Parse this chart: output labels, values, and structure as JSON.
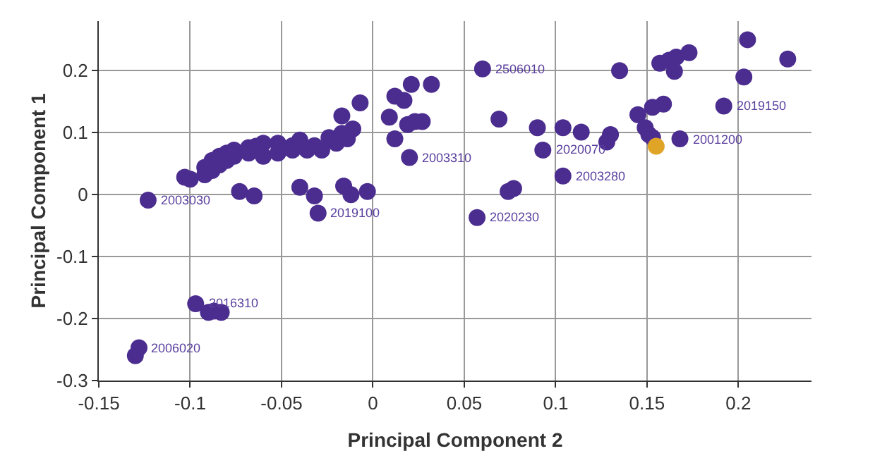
{
  "chart_data": {
    "type": "scatter",
    "xlabel": "Principal Component 2",
    "ylabel": "Principal Component 1",
    "xlim": [
      -0.15,
      0.24
    ],
    "xticks": [
      -0.15,
      -0.1,
      -0.05,
      0,
      0.05,
      0.1,
      0.15,
      0.2
    ],
    "ylim": [
      -0.3,
      0.28
    ],
    "yticks": [
      -0.3,
      -0.2,
      -0.1,
      0,
      0.1,
      0.2
    ],
    "grid": true,
    "marker": "circle",
    "series": [
      {
        "color": "#4b2c8f",
        "x": [
          -0.123,
          -0.103,
          -0.1,
          -0.092,
          -0.088,
          -0.084,
          -0.08,
          -0.076,
          -0.068,
          -0.064,
          -0.06,
          -0.052,
          -0.044,
          -0.04,
          -0.032,
          -0.024,
          -0.017,
          -0.011,
          -0.092,
          -0.088,
          -0.084,
          -0.08,
          -0.076,
          -0.068,
          -0.06,
          -0.052,
          -0.044,
          -0.036,
          -0.028,
          -0.02,
          -0.014,
          -0.073,
          -0.065,
          -0.04,
          -0.032,
          -0.03,
          -0.016,
          -0.012,
          -0.003,
          -0.007,
          -0.017,
          0.012,
          0.017,
          0.021,
          0.032,
          0.023,
          0.027,
          0.019,
          0.009,
          0.012,
          0.02,
          0.06,
          0.069,
          0.09,
          0.104,
          0.114,
          0.093,
          0.104,
          0.074,
          0.077,
          0.057,
          0.135,
          0.149,
          0.151,
          0.153,
          0.157,
          0.162,
          0.166,
          0.173,
          0.165,
          0.203,
          0.205,
          0.227,
          0.145,
          0.153,
          0.159,
          0.192,
          0.168,
          0.13,
          0.128,
          -0.097,
          -0.09,
          -0.087,
          -0.083,
          -0.128,
          -0.13
        ],
        "values": [
          -0.009,
          0.028,
          0.025,
          0.044,
          0.055,
          0.062,
          0.067,
          0.072,
          0.076,
          0.078,
          0.083,
          0.083,
          0.079,
          0.088,
          0.079,
          0.092,
          0.099,
          0.106,
          0.032,
          0.039,
          0.048,
          0.055,
          0.062,
          0.067,
          0.062,
          0.067,
          0.072,
          0.072,
          0.072,
          0.083,
          0.09,
          0.005,
          -0.002,
          0.012,
          -0.002,
          -0.03,
          0.014,
          0.0,
          0.005,
          0.148,
          0.127,
          0.159,
          0.152,
          0.178,
          0.178,
          0.118,
          0.118,
          0.113,
          0.125,
          0.09,
          0.06,
          0.203,
          0.122,
          0.108,
          0.108,
          0.101,
          0.072,
          0.03,
          0.005,
          0.01,
          -0.037,
          0.2,
          0.108,
          0.097,
          0.092,
          0.212,
          0.217,
          0.222,
          0.229,
          0.199,
          0.19,
          0.25,
          0.219,
          0.129,
          0.141,
          0.146,
          0.143,
          0.09,
          0.097,
          0.085,
          -0.176,
          -0.19,
          -0.188,
          -0.19,
          -0.247,
          -0.26
        ]
      },
      {
        "color": "#e0a526",
        "x": [
          0.155
        ],
        "values": [
          0.078
        ]
      }
    ],
    "annotations": [
      {
        "text": "2506010",
        "x": 0.06,
        "y": 0.203
      },
      {
        "text": "2020070",
        "x": 0.093,
        "y": 0.072
      },
      {
        "text": "2003280",
        "x": 0.104,
        "y": 0.03
      },
      {
        "text": "2020230",
        "x": 0.057,
        "y": -0.037
      },
      {
        "text": "2003030",
        "x": -0.123,
        "y": -0.009
      },
      {
        "text": "2019100",
        "x": -0.03,
        "y": -0.03
      },
      {
        "text": "2003310",
        "x": 0.02,
        "y": 0.06
      },
      {
        "text": "2016310",
        "x": -0.097,
        "y": -0.176
      },
      {
        "text": "2006020",
        "x": -0.128,
        "y": -0.247
      },
      {
        "text": "2019150",
        "x": 0.192,
        "y": 0.143
      },
      {
        "text": "2001200",
        "x": 0.168,
        "y": 0.09
      }
    ]
  }
}
